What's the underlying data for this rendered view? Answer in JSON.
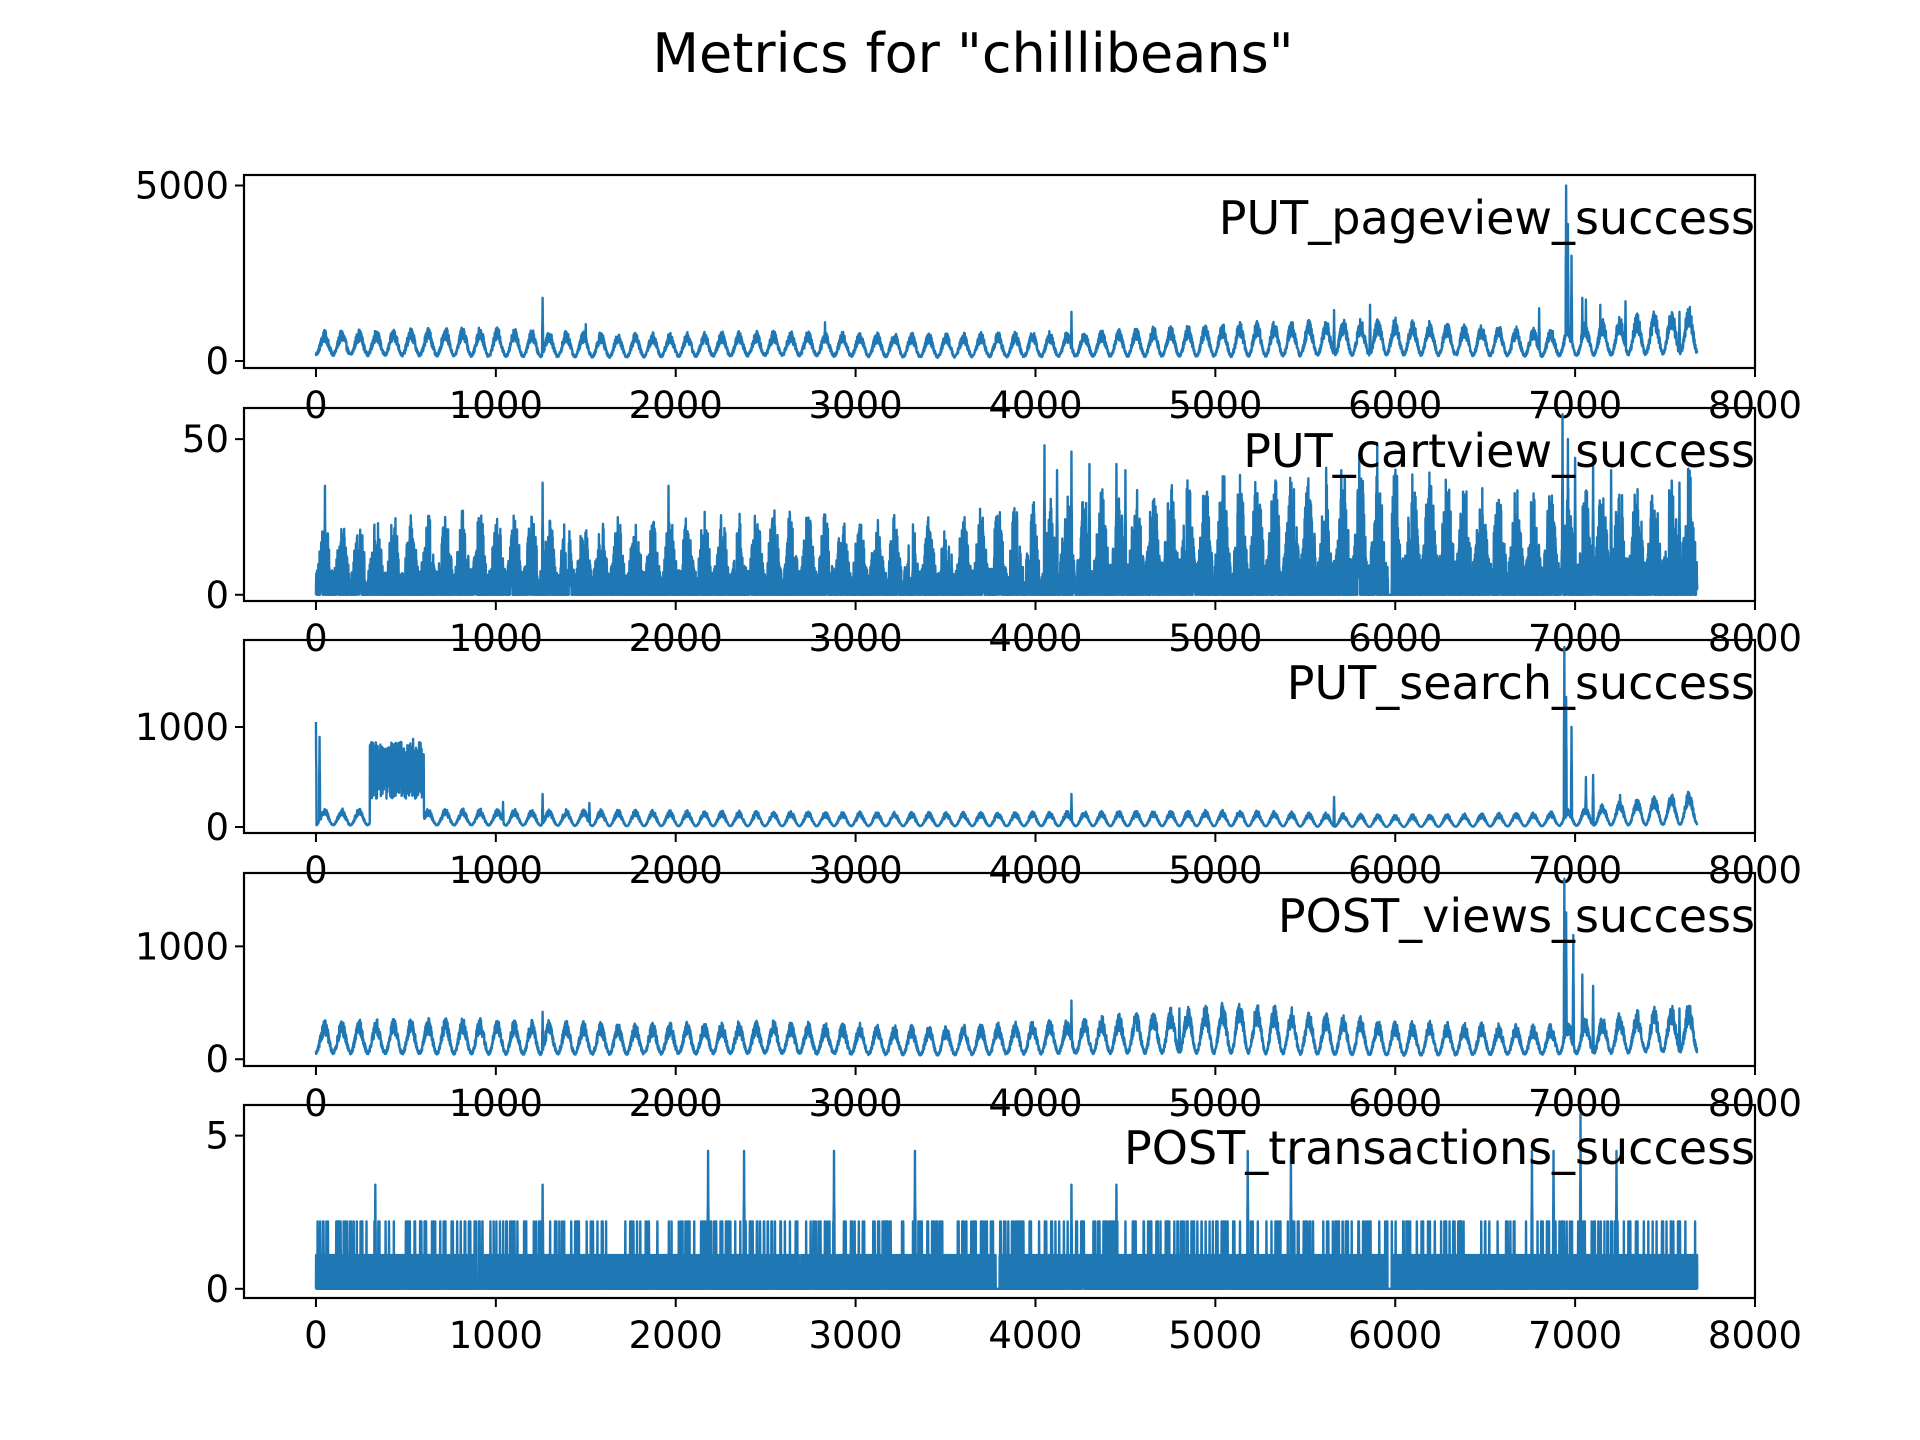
{
  "chart_data": {
    "type": "line",
    "title": "Metrics for \"chillibeans\"",
    "color": "#1f77b4",
    "xlim": [
      -400,
      8000
    ],
    "x_ticks": [
      0,
      1000,
      2000,
      3000,
      4000,
      5000,
      6000,
      7000,
      8000
    ],
    "x_tick_labels": [
      "0",
      "1000",
      "2000",
      "3000",
      "4000",
      "5000",
      "6000",
      "7000",
      "8000"
    ],
    "n_points": 7680,
    "panels": [
      {
        "name": "PUT_pageview_success",
        "ylim": [
          -200,
          5300
        ],
        "y_ticks": [
          0,
          5000
        ],
        "y_tick_labels": [
          "0",
          "5000"
        ],
        "period": 96,
        "daily_low": [
          200,
          150,
          120,
          180,
          120,
          150,
          150,
          200,
          150,
          250
        ],
        "daily_high": [
          700,
          800,
          650,
          700,
          650,
          700,
          900,
          1000,
          750,
          1300
        ],
        "spikes": [
          [
            1260,
            1800
          ],
          [
            1500,
            1050
          ],
          [
            2830,
            1100
          ],
          [
            4200,
            1400
          ],
          [
            5660,
            1450
          ],
          [
            5860,
            1600
          ],
          [
            6800,
            1500
          ],
          [
            6950,
            5000
          ],
          [
            6960,
            3900
          ],
          [
            6980,
            3000
          ],
          [
            7040,
            1800
          ],
          [
            7060,
            1750
          ],
          [
            7140,
            1600
          ],
          [
            7280,
            1700
          ],
          [
            7580,
            1400
          ]
        ]
      },
      {
        "name": "PUT_cartview_success",
        "ylim": [
          -2,
          60
        ],
        "y_ticks": [
          0,
          50
        ],
        "y_tick_labels": [
          "0",
          "50"
        ],
        "period": 96,
        "daily_low": [
          0,
          0,
          0,
          0,
          0,
          0,
          0,
          0,
          0,
          0
        ],
        "daily_high": [
          18,
          20,
          18,
          20,
          18,
          24,
          28,
          30,
          24,
          30
        ],
        "spikes": [
          [
            50,
            35
          ],
          [
            1260,
            36
          ],
          [
            1960,
            35
          ],
          [
            4050,
            48
          ],
          [
            4120,
            40
          ],
          [
            4200,
            46
          ],
          [
            4300,
            42
          ],
          [
            4450,
            42
          ],
          [
            4500,
            40
          ],
          [
            5050,
            38
          ],
          [
            5700,
            40
          ],
          [
            5800,
            45
          ],
          [
            5900,
            48
          ],
          [
            6930,
            58
          ],
          [
            6960,
            50
          ],
          [
            7000,
            44
          ],
          [
            7100,
            42
          ],
          [
            7200,
            40
          ],
          [
            7580,
            36
          ]
        ],
        "gaps": [
          [
            5960,
            5980
          ]
        ]
      },
      {
        "name": "PUT_search_success",
        "ylim": [
          -60,
          1870
        ],
        "y_ticks": [
          0,
          1000
        ],
        "y_tick_labels": [
          "0",
          "1000"
        ],
        "period": 96,
        "daily_low": [
          20,
          20,
          10,
          10,
          10,
          10,
          10,
          0,
          10,
          30
        ],
        "daily_high": [
          150,
          150,
          140,
          130,
          120,
          130,
          140,
          100,
          120,
          300
        ],
        "spikes": [
          [
            0,
            1050
          ],
          [
            20,
            900
          ],
          [
            330,
            600
          ],
          [
            400,
            750
          ],
          [
            470,
            850
          ],
          [
            540,
            880
          ],
          [
            580,
            700
          ],
          [
            1040,
            250
          ],
          [
            1260,
            330
          ],
          [
            1520,
            240
          ],
          [
            4200,
            330
          ],
          [
            5660,
            300
          ],
          [
            6940,
            1800
          ],
          [
            6950,
            1300
          ],
          [
            6980,
            1000
          ],
          [
            7060,
            500
          ],
          [
            7100,
            520
          ],
          [
            7250,
            320
          ]
        ],
        "bursts": [
          [
            300,
            600,
            280,
            850
          ]
        ]
      },
      {
        "name": "POST_views_success",
        "ylim": [
          -60,
          1650
        ],
        "y_ticks": [
          0,
          1000
        ],
        "y_tick_labels": [
          "0",
          "1000"
        ],
        "period": 96,
        "daily_low": [
          60,
          50,
          50,
          60,
          40,
          60,
          60,
          40,
          50,
          80
        ],
        "daily_high": [
          280,
          300,
          260,
          280,
          240,
          300,
          420,
          280,
          250,
          420
        ],
        "spikes": [
          [
            1260,
            420
          ],
          [
            4200,
            520
          ],
          [
            4800,
            450
          ],
          [
            6940,
            1600
          ],
          [
            6950,
            1300
          ],
          [
            6990,
            1100
          ],
          [
            7040,
            750
          ],
          [
            7100,
            650
          ],
          [
            7580,
            450
          ]
        ]
      },
      {
        "name": "POST_transactions_success",
        "ylim": [
          -0.3,
          6
        ],
        "y_ticks": [
          0,
          5
        ],
        "y_tick_labels": [
          "0",
          "5"
        ],
        "period": 96,
        "daily_low": [
          0,
          0,
          0,
          0,
          0,
          0,
          0,
          0,
          0,
          0
        ],
        "daily_high": [
          2.2,
          2.2,
          2.2,
          2.2,
          2.2,
          2.2,
          2.2,
          2.2,
          2.2,
          2.2
        ],
        "spikes": [
          [
            330,
            3.4
          ],
          [
            1260,
            3.4
          ],
          [
            2180,
            4.5
          ],
          [
            2380,
            4.5
          ],
          [
            2880,
            4.5
          ],
          [
            3330,
            4.5
          ],
          [
            4200,
            3.4
          ],
          [
            4450,
            3.4
          ],
          [
            5180,
            4.5
          ],
          [
            5420,
            4.5
          ],
          [
            6760,
            4.5
          ],
          [
            6880,
            4.5
          ],
          [
            7030,
            5.7
          ],
          [
            7230,
            4.5
          ]
        ],
        "gaps": [
          [
            3780,
            3800
          ],
          [
            5960,
            5980
          ]
        ],
        "quantized": [
          1.1,
          2.2
        ]
      }
    ]
  }
}
